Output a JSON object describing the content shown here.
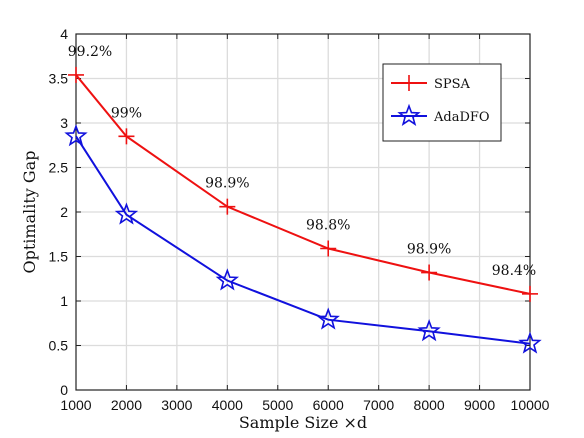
{
  "chart_data": {
    "type": "line",
    "xlabel": "Sample Size ×d",
    "ylabel": "Optimality Gap",
    "xlim": [
      1000,
      10000
    ],
    "ylim": [
      0,
      4
    ],
    "xticks": [
      1000,
      2000,
      3000,
      4000,
      5000,
      6000,
      7000,
      8000,
      9000,
      10000
    ],
    "xtick_labels": [
      "1000",
      "2000",
      "3000",
      "4000",
      "5000",
      "6000",
      "7000",
      "8000",
      "9000",
      "10000"
    ],
    "yticks": [
      0,
      0.5,
      1,
      1.5,
      2,
      2.5,
      3,
      3.5,
      4
    ],
    "ytick_labels": [
      "0",
      "0.5",
      "1",
      "1.5",
      "2",
      "2.5",
      "3",
      "3.5",
      "4"
    ],
    "grid": true,
    "legend_position": "top-right",
    "series": [
      {
        "name": "SPSA",
        "color": "#ee1111",
        "marker": "plus",
        "x": [
          1000,
          2000,
          4000,
          6000,
          8000,
          10000
        ],
        "y": [
          3.54,
          2.85,
          2.06,
          1.59,
          1.32,
          1.08
        ]
      },
      {
        "name": "AdaDFO",
        "color": "#1111dd",
        "marker": "star",
        "x": [
          1000,
          2000,
          4000,
          6000,
          8000,
          10000
        ],
        "y": [
          2.85,
          1.97,
          1.23,
          0.79,
          0.66,
          0.52
        ]
      }
    ],
    "annotations": [
      {
        "text": "99.2%",
        "x": 1000,
        "y": 3.54
      },
      {
        "text": "99%",
        "x": 2000,
        "y": 2.85
      },
      {
        "text": "98.9%",
        "x": 4000,
        "y": 2.06
      },
      {
        "text": "98.8%",
        "x": 6000,
        "y": 1.59
      },
      {
        "text": "98.9%",
        "x": 8000,
        "y": 1.32
      },
      {
        "text": "98.4%",
        "x": 10000,
        "y": 1.08
      }
    ]
  }
}
